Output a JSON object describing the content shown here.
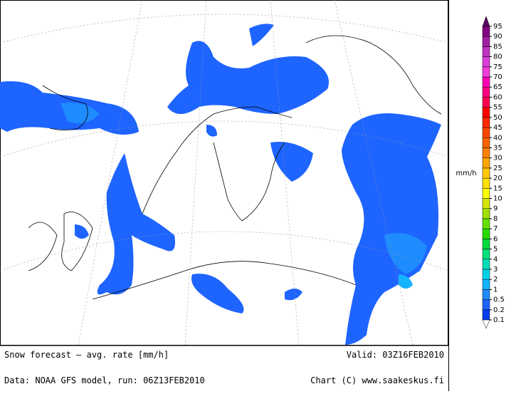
{
  "map": {
    "footer": {
      "title": "Snow forecast – avg. rate [mm/h]",
      "valid": "Valid: 03Z16FEB2010",
      "source": "Data: NOAA GFS model, run: 06Z13FEB2010",
      "credit": "Chart (C) www.saakeskus.fi"
    }
  },
  "colorbar": {
    "unit": "mm/h",
    "levels": [
      0.1,
      0.2,
      0.5,
      1,
      2,
      3,
      4,
      5,
      6,
      7,
      8,
      9,
      10,
      15,
      20,
      25,
      30,
      35,
      40,
      45,
      50,
      55,
      60,
      65,
      70,
      75,
      80,
      85,
      90,
      95
    ],
    "colors": [
      "#0a3cf0",
      "#1e64ff",
      "#1e8cff",
      "#14b4ff",
      "#00d2e6",
      "#00dcb4",
      "#00e07c",
      "#00dc3c",
      "#28dc00",
      "#64e000",
      "#a0e000",
      "#d2e600",
      "#ffff00",
      "#ffe100",
      "#ffc800",
      "#ffa500",
      "#ff8200",
      "#ff6400",
      "#ff4600",
      "#ff2800",
      "#ff0000",
      "#ff0050",
      "#ff0082",
      "#ff00b4",
      "#f03cdc",
      "#dc3cdc",
      "#c032c0",
      "#a01ea0",
      "#820082"
    ],
    "under_color": "#ffffff",
    "over_color": "#5a0064"
  }
}
